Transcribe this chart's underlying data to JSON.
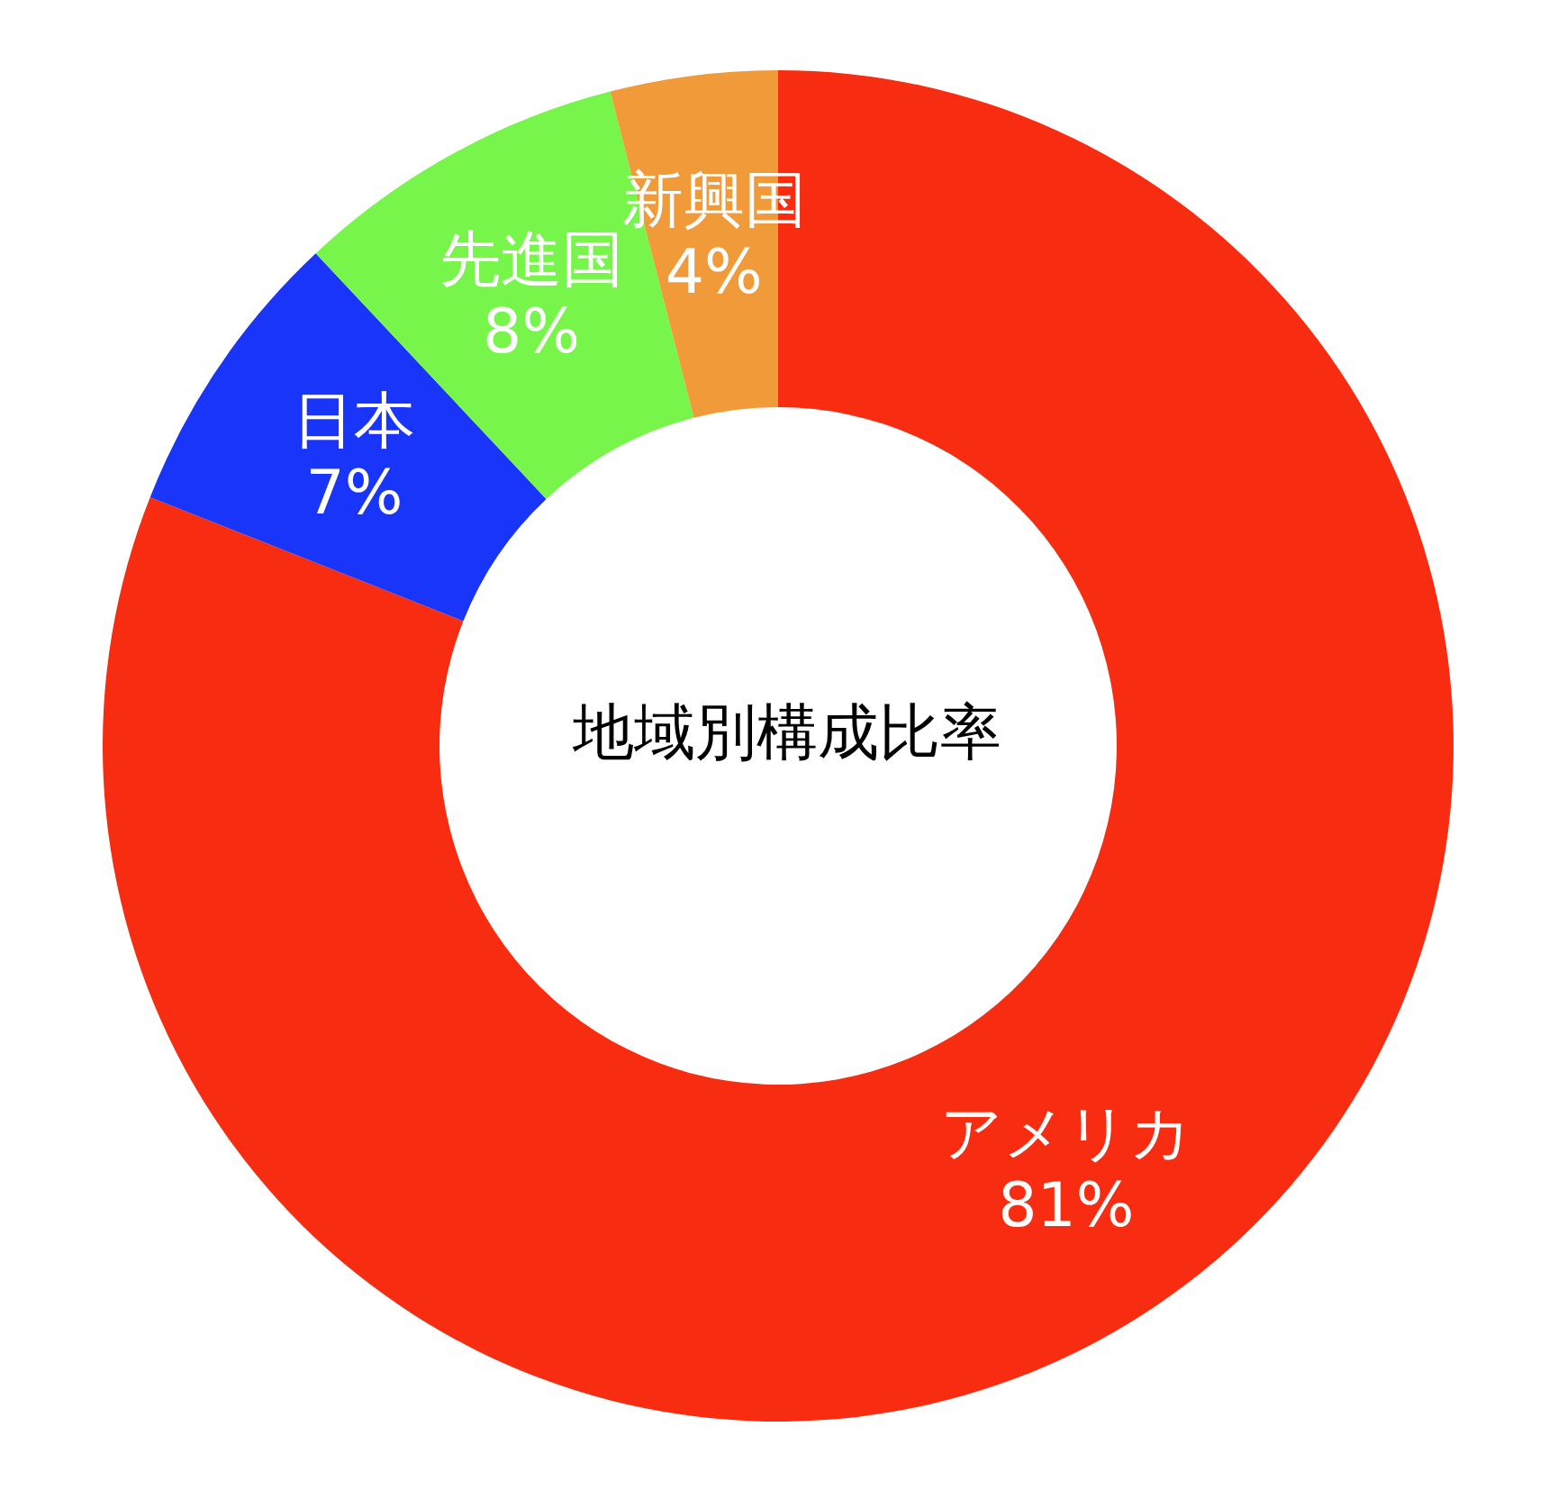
{
  "chart_data": {
    "type": "donut",
    "title": "地域別構成比率",
    "categories": [
      "アメリカ",
      "日本",
      "先進国",
      "新興国"
    ],
    "values": [
      81,
      7,
      8,
      4
    ],
    "value_labels": [
      "81%",
      "7%",
      "8%",
      "4%"
    ],
    "colors": [
      "#f72c10",
      "#1a35fa",
      "#78f54a",
      "#f09a3a"
    ],
    "legend": false
  }
}
